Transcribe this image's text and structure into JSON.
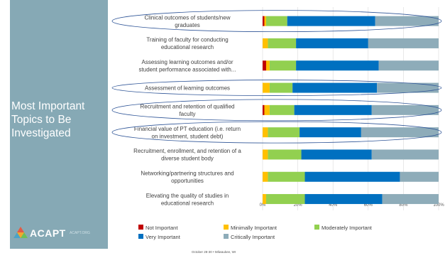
{
  "slide": {
    "title_lines": [
      "Most Important",
      "Topics to Be",
      "Investigated"
    ],
    "logo_text": "ACAPT",
    "logo_url": "ACAPT.ORG",
    "footer": "October 28-30 • Milwaukee, WI"
  },
  "colors": {
    "sidebar": "#86a9b5",
    "not_important": "#c00000",
    "minimally_important": "#ffc000",
    "moderately_important": "#92d050",
    "very_important": "#0070c0",
    "critically_important": "#8eacb9"
  },
  "chart_data": {
    "type": "bar",
    "orientation": "horizontal",
    "stacked": true,
    "categories": [
      [
        "Clinical outcomes of students/new",
        "graduates"
      ],
      [
        "Training of faculty for conducting",
        "educational research"
      ],
      [
        "Assessing learning outcomes and/or",
        "student performance associated with..."
      ],
      [
        "Assessment of learning outcomes"
      ],
      [
        "Recruitment and retention of qualified",
        "faculty"
      ],
      [
        "Financial value of PT education (i.e. return",
        "on investment, student debt)"
      ],
      [
        "Recruitment, enrollment, and retention of a",
        "diverse student body"
      ],
      [
        "Networking/partnering structures and",
        "opportunities"
      ],
      [
        "Elevating the quality of studies in",
        "educational research"
      ]
    ],
    "series": [
      {
        "name": "Not Important",
        "values": [
          1,
          0,
          2,
          0,
          1,
          0,
          0,
          0,
          0
        ]
      },
      {
        "name": "Minimally Important",
        "values": [
          1,
          3,
          2,
          4,
          3,
          3,
          3,
          3,
          2
        ]
      },
      {
        "name": "Moderately Important",
        "values": [
          12,
          16,
          15,
          13,
          14,
          18,
          19,
          21,
          22
        ]
      },
      {
        "name": "Very Important",
        "values": [
          50,
          41,
          47,
          48,
          44,
          35,
          40,
          54,
          44
        ]
      },
      {
        "name": "Critically Important",
        "values": [
          36,
          40,
          34,
          35,
          38,
          44,
          38,
          22,
          32
        ]
      }
    ],
    "x_ticks": [
      "0%",
      "20%",
      "40%",
      "60%",
      "80%",
      "100%"
    ],
    "xlim": [
      0,
      100
    ],
    "highlighted_categories": [
      0,
      3,
      4,
      5
    ],
    "grid": true,
    "legend_position": "bottom"
  }
}
